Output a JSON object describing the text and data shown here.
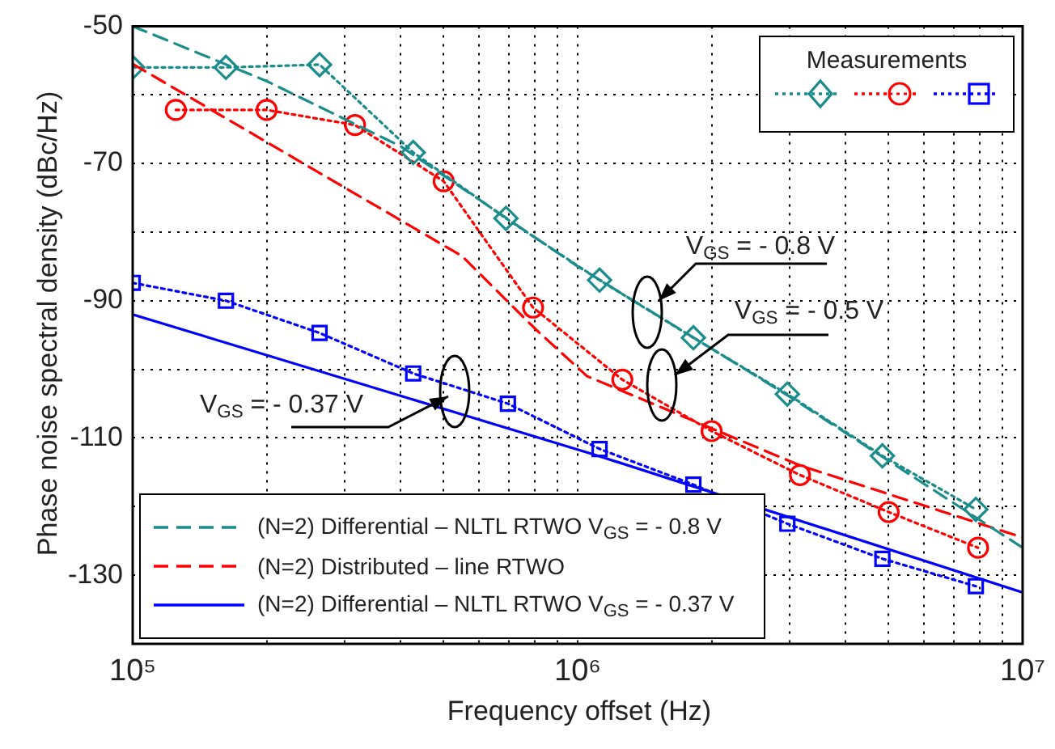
{
  "chart_data": {
    "type": "line",
    "xlabel": "Frequency offset (Hz)",
    "ylabel": "Phase noise spectral density (dBc/Hz)",
    "log": "x",
    "grid": true,
    "legend": "bottom left",
    "legend_title": "Measurements",
    "xlim": [
      100000,
      10000000
    ],
    "xticks": [
      {
        "value": 100000,
        "label": "10⁵"
      },
      {
        "value": 200000,
        "label": null
      },
      {
        "value": 300000,
        "label": null
      },
      {
        "value": 400000,
        "label": null
      },
      {
        "value": 500000,
        "label": null
      },
      {
        "value": 600000,
        "label": null
      },
      {
        "value": 700000,
        "label": null
      },
      {
        "value": 800000,
        "label": null
      },
      {
        "value": 900000,
        "label": null
      },
      {
        "value": 1000000,
        "label": "10⁶"
      },
      {
        "value": 2000000,
        "label": null
      },
      {
        "value": 3000000,
        "label": null
      },
      {
        "value": 4000000,
        "label": null
      },
      {
        "value": 5000000,
        "label": null
      },
      {
        "value": 6000000,
        "label": null
      },
      {
        "value": 7000000,
        "label": null
      },
      {
        "value": 8000000,
        "label": null
      },
      {
        "value": 9000000,
        "label": null
      },
      {
        "value": 10000000,
        "label": "10⁷"
      }
    ],
    "ylim": [
      -140,
      -50
    ],
    "yticks": [
      -50,
      {
        "value": -60,
        "label": null
      },
      -70,
      {
        "value": -80,
        "label": null
      },
      -90,
      {
        "value": -100,
        "label": null
      },
      -110,
      {
        "value": -120,
        "label": null
      },
      -130,
      {
        "value": -140,
        "label": null
      }
    ],
    "series": [
      {
        "name": "(N=2) Differential – NLTL RTWO  V$_{GS}$ = - 0.8 V",
        "color": "#1a8c8c",
        "line_style": "dashed",
        "marker": "none",
        "x": [
          100000,
          200000,
          400000,
          1000000,
          3000000,
          10000000
        ],
        "values": [
          -50,
          -58,
          -67.5,
          -85,
          -104,
          -126
        ]
      },
      {
        "name": "(N=2) Distributed – line  RTWO",
        "color": "#ff0000",
        "line_style": "dashed",
        "marker": "none",
        "x": [
          100000,
          550000,
          800000,
          1050000,
          3160000,
          10000000
        ],
        "values": [
          -55.5,
          -83.5,
          -94,
          -101,
          -114,
          -124.5
        ]
      },
      {
        "name": "(N=2) Differential – NLTL RTWO  V$_{GS}$ = - 0.37 V",
        "color": "#0000ff",
        "line_style": "solid",
        "marker": "none",
        "x": [
          100000,
          1100000,
          10000000
        ],
        "values": [
          -92,
          -112.5,
          -132.5
        ]
      },
      {
        "color": "#1a8c8c",
        "line_style": "dotted",
        "marker": "diamond",
        "x": [
          100000,
          162000,
          263000,
          427000,
          690000,
          1120000,
          1820000,
          2960000,
          4840000,
          7850000
        ],
        "values": [
          -56,
          -56,
          -55.6,
          -68.4,
          -78,
          -87,
          -95.4,
          -103.6,
          -112.6,
          -120.4
        ]
      },
      {
        "color": "#ff0000",
        "line_style": "dotted",
        "marker": "circle",
        "x": [
          125000,
          200000,
          316000,
          500000,
          794000,
          1260000,
          2000000,
          3160000,
          5000000,
          7940000
        ],
        "values": [
          -62.2,
          -62.2,
          -64.4,
          -72.6,
          -91,
          -101.5,
          -109,
          -115.4,
          -120.8,
          -126
        ]
      },
      {
        "color": "#0000ff",
        "line_style": "dotted",
        "marker": "square",
        "x": [
          100000,
          162000,
          263000,
          427000,
          697000,
          1120000,
          1820000,
          2960000,
          4840000,
          7850000
        ],
        "values": [
          -87.4,
          -90,
          -94.7,
          -100.6,
          -105,
          -111.6,
          -116.8,
          -122.5,
          -127.6,
          -131.6
        ]
      }
    ],
    "annotations": [
      "V$_{GS}$ = - 0.8 V",
      "V$_{GS}$ = - 0.5 V",
      "V$_{GS}$ = - 0.37 V"
    ]
  }
}
